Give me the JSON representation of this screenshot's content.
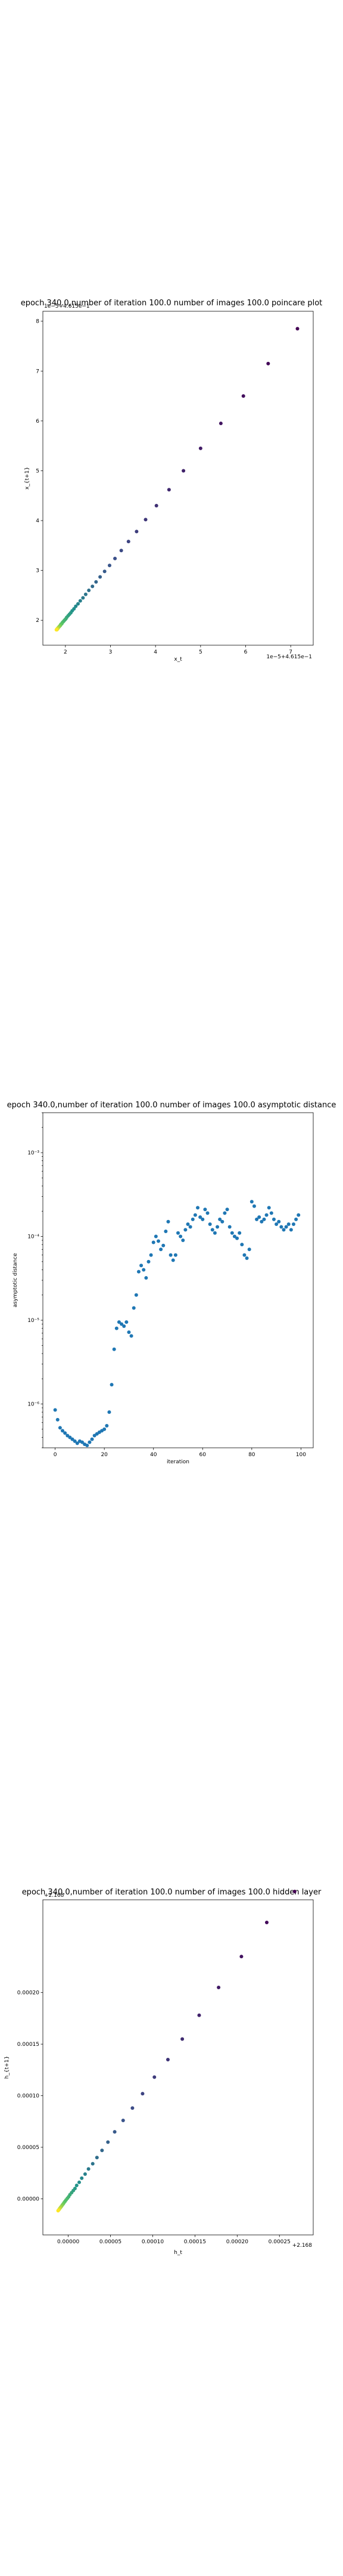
{
  "chart_data": [
    {
      "type": "scatter",
      "title": "epoch 340.0,number of iteration 100.0 number of images 100.0 poincare plot",
      "xlabel": "x_t",
      "ylabel": "x_{t+1}",
      "x_offset_label": "1e−5+4.615e−1",
      "y_offset_label": "1e−5+4.615e−1",
      "xlim": [
        1.5,
        7.5
      ],
      "ylim": [
        1.5,
        8.2
      ],
      "xticks": [
        2,
        3,
        4,
        5,
        6,
        7
      ],
      "yticks": [
        2,
        3,
        4,
        5,
        6,
        7,
        8
      ],
      "grid": false,
      "colormap": "viridis",
      "x": [
        7.15,
        6.5,
        5.95,
        5.45,
        5.0,
        4.62,
        4.3,
        4.02,
        3.78,
        3.58,
        3.4,
        3.24,
        3.1,
        2.98,
        2.87,
        2.77,
        2.68,
        2.6,
        2.52,
        2.45,
        2.39,
        2.33,
        2.28,
        2.23,
        2.19,
        2.15,
        2.12,
        2.09,
        2.06,
        2.03,
        2.01,
        1.99,
        1.97,
        1.95,
        1.93,
        1.92,
        1.9,
        1.89,
        1.88,
        1.87,
        1.86,
        1.85,
        1.84,
        1.83,
        1.83,
        1.82,
        1.82,
        1.81,
        1.81,
        1.8
      ],
      "y": [
        7.85,
        7.15,
        6.5,
        5.95,
        5.45,
        5.0,
        4.62,
        4.3,
        4.02,
        3.78,
        3.58,
        3.4,
        3.24,
        3.1,
        2.98,
        2.87,
        2.77,
        2.68,
        2.6,
        2.52,
        2.45,
        2.39,
        2.33,
        2.28,
        2.23,
        2.19,
        2.15,
        2.12,
        2.09,
        2.06,
        2.03,
        2.01,
        1.99,
        1.97,
        1.95,
        1.93,
        1.92,
        1.9,
        1.89,
        1.88,
        1.87,
        1.86,
        1.85,
        1.84,
        1.83,
        1.83,
        1.82,
        1.82,
        1.81,
        1.81
      ]
    },
    {
      "type": "scatter",
      "title": "epoch 340.0,number of iteration 100.0  number of images 100.0 asymptotic distance",
      "xlabel": "iteration",
      "ylabel": "asymptotic distance",
      "yscale": "log",
      "xlim": [
        -5,
        105
      ],
      "ylim": [
        3e-07,
        0.003
      ],
      "xticks": [
        0,
        20,
        40,
        60,
        80,
        100
      ],
      "yticks": [
        1e-06,
        1e-05,
        0.0001,
        0.001
      ],
      "ytick_labels": [
        "10⁻⁶",
        "10⁻⁵",
        "10⁻⁴",
        "10⁻³"
      ],
      "grid": false,
      "color": "#1f77b4",
      "x": [
        0,
        1,
        2,
        3,
        4,
        5,
        6,
        7,
        8,
        9,
        10,
        11,
        12,
        13,
        14,
        15,
        16,
        17,
        18,
        19,
        20,
        21,
        22,
        23,
        24,
        25,
        26,
        27,
        28,
        29,
        30,
        31,
        32,
        33,
        34,
        35,
        36,
        37,
        38,
        39,
        40,
        41,
        42,
        43,
        44,
        45,
        46,
        47,
        48,
        49,
        50,
        51,
        52,
        53,
        54,
        55,
        56,
        57,
        58,
        59,
        60,
        61,
        62,
        63,
        64,
        65,
        66,
        67,
        68,
        69,
        70,
        71,
        72,
        73,
        74,
        75,
        76,
        77,
        78,
        79,
        80,
        81,
        82,
        83,
        84,
        85,
        86,
        87,
        88,
        89,
        90,
        91,
        92,
        93,
        94,
        95,
        96,
        97,
        98,
        99
      ],
      "y": [
        8.5e-07,
        6.5e-07,
        5.2e-07,
        4.8e-07,
        4.5e-07,
        4.2e-07,
        4e-07,
        3.8e-07,
        3.6e-07,
        3.4e-07,
        3.6e-07,
        3.5e-07,
        3.3e-07,
        3.2e-07,
        3.5e-07,
        3.8e-07,
        4.2e-07,
        4.4e-07,
        4.6e-07,
        4.8e-07,
        5e-07,
        5.5e-07,
        8e-07,
        1.7e-06,
        4.5e-06,
        8e-06,
        9.5e-06,
        9e-06,
        8.5e-06,
        9.5e-06,
        7.2e-06,
        6.5e-06,
        1.4e-05,
        2e-05,
        3.8e-05,
        4.5e-05,
        4e-05,
        3.2e-05,
        5e-05,
        6e-05,
        8.5e-05,
        0.0001,
        8.8e-05,
        7e-05,
        7.8e-05,
        0.000115,
        0.00015,
        6e-05,
        5.2e-05,
        6e-05,
        0.00011,
        0.0001,
        9e-05,
        0.00012,
        0.00014,
        0.00013,
        0.00016,
        0.00018,
        0.00022,
        0.00017,
        0.00016,
        0.00021,
        0.00019,
        0.00014,
        0.00012,
        0.00011,
        0.00013,
        0.00016,
        0.00015,
        0.00019,
        0.00021,
        0.00013,
        0.00011,
        0.0001,
        9.5e-05,
        0.00011,
        8e-05,
        6e-05,
        5.5e-05,
        7e-05,
        0.00026,
        0.00023,
        0.00016,
        0.00017,
        0.00015,
        0.00016,
        0.00018,
        0.00022,
        0.00019,
        0.00016,
        0.00014,
        0.00015,
        0.00013,
        0.00012,
        0.00013,
        0.00014,
        0.00012,
        0.00014,
        0.00016,
        0.00018
      ]
    },
    {
      "type": "scatter",
      "title": "epoch 340.0,number of iteration 100.0  number of images 100.0 hidden layer",
      "xlabel": "h_t",
      "ylabel": "h_{t+1}",
      "x_offset_label": "+2.168",
      "y_offset_label": "+2.168",
      "xlim": [
        -3e-05,
        0.00029
      ],
      "ylim": [
        -3.5e-05,
        0.00029
      ],
      "xticks": [
        0,
        5e-05,
        0.0001,
        0.00015,
        0.0002,
        0.00025
      ],
      "xtick_labels": [
        "0.00000",
        "0.00005",
        "0.00010",
        "0.00015",
        "0.00020",
        "0.00025"
      ],
      "yticks": [
        0,
        5e-05,
        0.0001,
        0.00015,
        0.0002
      ],
      "ytick_labels": [
        "0.00000",
        "0.00005",
        "0.00010",
        "0.00015",
        "0.00020"
      ],
      "grid": false,
      "colormap": "viridis",
      "x": [
        0.000268,
        0.000235,
        0.000205,
        0.000178,
        0.000155,
        0.000135,
        0.000118,
        0.000102,
        8.8e-05,
        7.6e-05,
        6.5e-05,
        5.5e-05,
        4.7e-05,
        4e-05,
        3.4e-05,
        2.9e-05,
        2.4e-05,
        2e-05,
        1.6e-05,
        1.3e-05,
        1e-05,
        8e-06,
        6e-06,
        4e-06,
        2e-06,
        5e-07,
        -1e-06,
        -2.5e-06,
        -3.8e-06,
        -5e-06,
        -6e-06,
        -7e-06,
        -7.8e-06,
        -8.6e-06,
        -9.3e-06,
        -1e-05,
        -1.05e-05,
        -1.1e-05,
        -1.15e-05,
        -1.2e-05
      ],
      "y": [
        0.000298,
        0.000268,
        0.000235,
        0.000205,
        0.000178,
        0.000155,
        0.000135,
        0.000118,
        0.000102,
        8.8e-05,
        7.6e-05,
        6.5e-05,
        5.5e-05,
        4.7e-05,
        4e-05,
        3.4e-05,
        2.9e-05,
        2.4e-05,
        2e-05,
        1.6e-05,
        1.3e-05,
        1e-05,
        8e-06,
        6e-06,
        4e-06,
        2e-06,
        5e-07,
        -1e-06,
        -2.5e-06,
        -3.8e-06,
        -5e-06,
        -6e-06,
        -7e-06,
        -7.8e-06,
        -8.6e-06,
        -9.3e-06,
        -1e-05,
        -1.05e-05,
        -1.1e-05,
        -1.15e-05
      ]
    }
  ]
}
